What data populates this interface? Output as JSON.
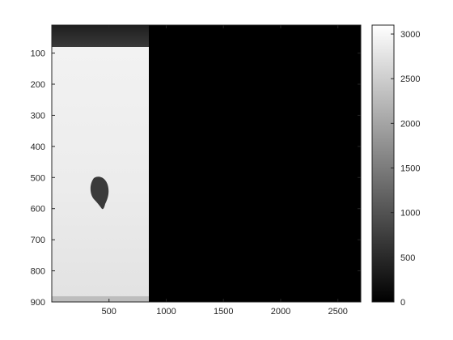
{
  "chart_data": {
    "type": "heatmap",
    "title": "",
    "xlabel": "",
    "ylabel": "",
    "xlim": [
      0,
      2700
    ],
    "ylim": [
      900,
      10
    ],
    "x_ticks": [
      500,
      1000,
      1500,
      2000,
      2500
    ],
    "x_tick_labels": [
      "500",
      "1000",
      "1500",
      "2000",
      "2500"
    ],
    "y_ticks": [
      100,
      200,
      300,
      400,
      500,
      600,
      700,
      800,
      900
    ],
    "y_tick_labels": [
      "100",
      "200",
      "300",
      "400",
      "500",
      "600",
      "700",
      "800",
      "900"
    ],
    "colormap": "gray",
    "colorbar": {
      "range": [
        0,
        3100
      ],
      "ticks": [
        0,
        500,
        1000,
        1500,
        2000,
        2500,
        3000
      ],
      "tick_labels": [
        "0",
        "500",
        "1000",
        "1500",
        "2000",
        "2500",
        "3000"
      ]
    },
    "regions": [
      {
        "name": "dark top band",
        "x_range": [
          0,
          840
        ],
        "y_range": [
          10,
          75
        ],
        "value": 180
      },
      {
        "name": "bright image region",
        "x_range": [
          0,
          840
        ],
        "y_range": [
          75,
          900
        ],
        "value": 2650
      },
      {
        "name": "dark blob",
        "x_center": 410,
        "y_center": 545,
        "value": 450
      },
      {
        "name": "black background",
        "x_range": [
          840,
          2700
        ],
        "y_range": [
          10,
          900
        ],
        "value": 0
      }
    ],
    "grid": false
  }
}
